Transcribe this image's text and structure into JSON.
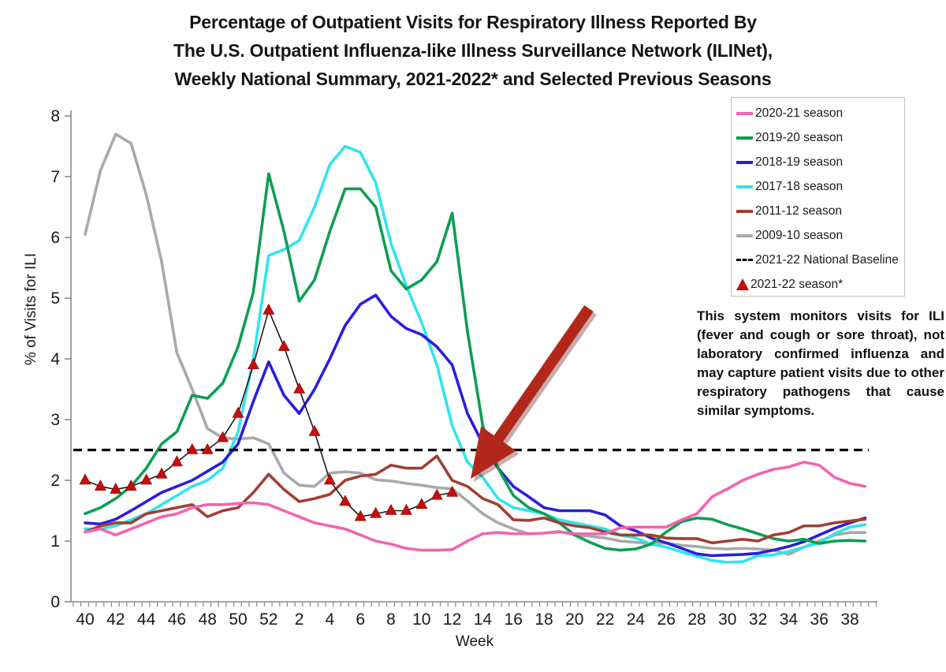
{
  "title": {
    "line1": "Percentage of Outpatient Visits for Respiratory Illness Reported By",
    "line2": "The U.S. Outpatient Influenza-like Illness Surveillance Network (ILINet),",
    "line3": "Weekly National Summary, 2021-2022* and Selected Previous Seasons"
  },
  "note": "This system monitors visits for ILI (fever and cough or sore throat), not laboratory confirmed influenza and may capture patient visits due to other respiratory pathogens that cause similar symptoms.",
  "chart_data": {
    "type": "line",
    "xlabel": "Week",
    "ylabel": "% of Visits for ILI",
    "ylim": [
      0,
      8
    ],
    "y_ticks": [
      0,
      1,
      2,
      3,
      4,
      5,
      6,
      7,
      8
    ],
    "weeks": [
      40,
      41,
      42,
      43,
      44,
      45,
      46,
      47,
      48,
      49,
      50,
      51,
      52,
      1,
      2,
      3,
      4,
      5,
      6,
      7,
      8,
      9,
      10,
      11,
      12,
      13,
      14,
      15,
      16,
      17,
      18,
      19,
      20,
      21,
      22,
      23,
      24,
      25,
      26,
      27,
      28,
      29,
      30,
      31,
      32,
      33,
      34,
      35,
      36,
      37,
      38,
      39
    ],
    "x_labels_every": "even weeks",
    "legend_position": "top-right",
    "grid": false,
    "baseline": {
      "label": "2021-22 National Baseline",
      "value": 2.5,
      "color": "#000000",
      "style": "dashed"
    },
    "series": [
      {
        "name": "2020-21 season",
        "color": "#f364ae",
        "values": [
          1.15,
          1.2,
          1.1,
          1.2,
          1.3,
          1.4,
          1.45,
          1.55,
          1.6,
          1.6,
          1.62,
          1.63,
          1.6,
          1.5,
          1.4,
          1.3,
          1.25,
          1.2,
          1.1,
          1.0,
          0.95,
          0.88,
          0.85,
          0.85,
          0.86,
          1.0,
          1.12,
          1.14,
          1.12,
          1.12,
          1.13,
          1.15,
          1.12,
          1.12,
          1.12,
          1.22,
          1.23,
          1.23,
          1.23,
          1.35,
          1.45,
          1.73,
          1.86,
          2.0,
          2.1,
          2.18,
          2.22,
          2.3,
          2.25,
          2.05,
          1.95,
          1.9
        ]
      },
      {
        "name": "2019-20 season",
        "color": "#0e9e53",
        "values": [
          1.45,
          1.55,
          1.7,
          1.9,
          2.2,
          2.6,
          2.8,
          3.4,
          3.35,
          3.6,
          4.2,
          5.1,
          7.05,
          6.1,
          4.95,
          5.3,
          6.1,
          6.8,
          6.8,
          6.5,
          5.45,
          5.15,
          5.3,
          5.6,
          6.4,
          4.45,
          2.9,
          2.2,
          1.75,
          1.55,
          1.45,
          1.3,
          1.1,
          0.98,
          0.88,
          0.85,
          0.87,
          0.95,
          1.15,
          1.32,
          1.38,
          1.36,
          1.27,
          1.2,
          1.12,
          1.04,
          1.0,
          1.03,
          0.96,
          1.0,
          1.01,
          1.0
        ]
      },
      {
        "name": "2018-19 season",
        "color": "#2b1edc",
        "values": [
          1.3,
          1.28,
          1.36,
          1.5,
          1.65,
          1.8,
          1.9,
          2.0,
          2.15,
          2.3,
          2.6,
          3.3,
          3.95,
          3.4,
          3.1,
          3.5,
          4.0,
          4.55,
          4.9,
          5.05,
          4.7,
          4.5,
          4.4,
          4.2,
          3.9,
          3.1,
          2.6,
          2.2,
          1.9,
          1.73,
          1.55,
          1.5,
          1.5,
          1.5,
          1.43,
          1.25,
          1.17,
          1.05,
          0.97,
          0.88,
          0.79,
          0.76,
          0.77,
          0.78,
          0.8,
          0.85,
          0.91,
          0.99,
          1.1,
          1.21,
          1.3,
          1.38
        ]
      },
      {
        "name": "2017-18 season",
        "color": "#2fe5ef",
        "values": [
          1.2,
          1.2,
          1.25,
          1.35,
          1.45,
          1.6,
          1.75,
          1.9,
          2.0,
          2.2,
          2.8,
          4.0,
          5.7,
          5.8,
          5.95,
          6.5,
          7.2,
          7.5,
          7.4,
          6.9,
          5.9,
          5.2,
          4.6,
          3.9,
          2.9,
          2.3,
          2.05,
          1.7,
          1.55,
          1.5,
          1.45,
          1.35,
          1.3,
          1.25,
          1.2,
          1.1,
          1.05,
          0.95,
          0.9,
          0.82,
          0.75,
          0.68,
          0.65,
          0.66,
          0.76,
          0.77,
          0.83,
          0.9,
          0.97,
          1.12,
          1.23,
          1.27
        ]
      },
      {
        "name": "2011-12 season",
        "color": "#a23f32",
        "values": [
          1.15,
          1.25,
          1.3,
          1.3,
          1.45,
          1.5,
          1.55,
          1.6,
          1.4,
          1.5,
          1.55,
          1.8,
          2.1,
          1.85,
          1.65,
          1.7,
          1.77,
          2.0,
          2.07,
          2.1,
          2.25,
          2.2,
          2.2,
          2.4,
          2.0,
          1.9,
          1.7,
          1.6,
          1.35,
          1.34,
          1.38,
          1.3,
          1.25,
          1.22,
          1.15,
          1.1,
          1.1,
          1.1,
          1.05,
          1.04,
          1.04,
          0.97,
          1.0,
          1.03,
          1.0,
          1.1,
          1.14,
          1.25,
          1.25,
          1.3,
          1.33,
          1.36
        ]
      },
      {
        "name": "2009-10 season",
        "color": "#a9a9a9",
        "values": [
          6.05,
          7.1,
          7.7,
          7.55,
          6.7,
          5.6,
          4.1,
          3.5,
          2.85,
          2.7,
          2.68,
          2.7,
          2.6,
          2.12,
          1.92,
          1.9,
          2.12,
          2.14,
          2.12,
          2.01,
          1.99,
          1.95,
          1.92,
          1.88,
          1.86,
          1.66,
          1.45,
          1.3,
          1.2,
          1.12,
          1.13,
          1.16,
          1.1,
          1.08,
          1.05,
          1.0,
          0.98,
          0.96,
          0.97,
          0.93,
          0.91,
          0.88,
          0.87,
          0.88,
          0.87,
          0.85,
          0.78,
          0.9,
          1.0,
          1.1,
          1.14,
          1.14
        ]
      },
      {
        "name": "2021-22 season*",
        "color": "#c60d0d",
        "marker": "triangle",
        "connector_color": "#1a1a1a",
        "values": [
          2.0,
          1.9,
          1.85,
          1.9,
          2.0,
          2.1,
          2.3,
          2.5,
          2.5,
          2.7,
          3.1,
          3.9,
          4.8,
          4.2,
          3.5,
          2.8,
          2.0,
          1.65,
          1.4,
          1.45,
          1.5,
          1.5,
          1.6,
          1.75,
          1.8,
          null,
          null,
          null,
          null,
          null,
          null,
          null,
          null,
          null,
          null,
          null,
          null,
          null,
          null,
          null,
          null,
          null,
          null,
          null,
          null,
          null,
          null,
          null,
          null,
          null,
          null,
          null
        ]
      }
    ],
    "legend_entries": [
      {
        "label": "2020-21 season",
        "swatch": "line",
        "color": "#f364ae"
      },
      {
        "label": "2019-20 season",
        "swatch": "line",
        "color": "#0e9e53"
      },
      {
        "label": "2018-19 season",
        "swatch": "line",
        "color": "#2b1edc"
      },
      {
        "label": "2017-18 season",
        "swatch": "line",
        "color": "#2fe5ef"
      },
      {
        "label": "2011-12 season",
        "swatch": "line",
        "color": "#a23f32"
      },
      {
        "label": "2009-10 season",
        "swatch": "line",
        "color": "#a9a9a9"
      },
      {
        "label": "2021-22 National Baseline",
        "swatch": "dash",
        "color": "#000000"
      },
      {
        "label": "2021-22 season*",
        "swatch": "triangle",
        "color": "#c60d0d"
      }
    ],
    "annotation_arrow": {
      "color": "#b1281a",
      "points_at": "end of 2021-22 season* line"
    }
  }
}
